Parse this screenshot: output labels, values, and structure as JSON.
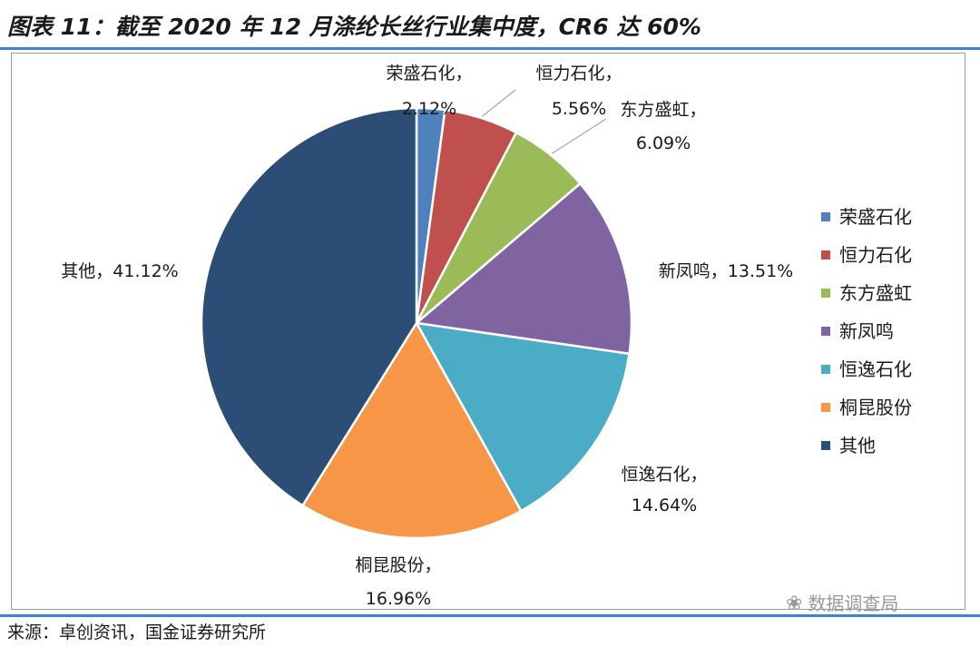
{
  "title": "图表 11：截至 2020 年 12 月涤纶长丝行业集中度，CR6 达 60%",
  "source": "来源：卓创资讯，国金证券研究所",
  "watermark": "数据调查局",
  "chart_data": {
    "type": "pie",
    "slices": [
      {
        "name": "荣盛石化",
        "value": 2.12,
        "label": "2.12%",
        "color": "#4f81bd"
      },
      {
        "name": "恒力石化",
        "value": 5.56,
        "label": "5.56%",
        "color": "#c0504d"
      },
      {
        "name": "东方盛虹",
        "value": 6.09,
        "label": "6.09%",
        "color": "#9bbb59"
      },
      {
        "name": "新凤鸣",
        "value": 13.51,
        "label": "13.51%",
        "color": "#8064a2"
      },
      {
        "name": "恒逸石化",
        "value": 14.64,
        "label": "14.64%",
        "color": "#4bacc6"
      },
      {
        "name": "桐昆股份",
        "value": 16.96,
        "label": "16.96%",
        "color": "#f79646"
      },
      {
        "name": "其他",
        "value": 41.12,
        "label": "41.12%",
        "color": "#2c4d75"
      }
    ],
    "legend": {
      "position": "right"
    }
  }
}
